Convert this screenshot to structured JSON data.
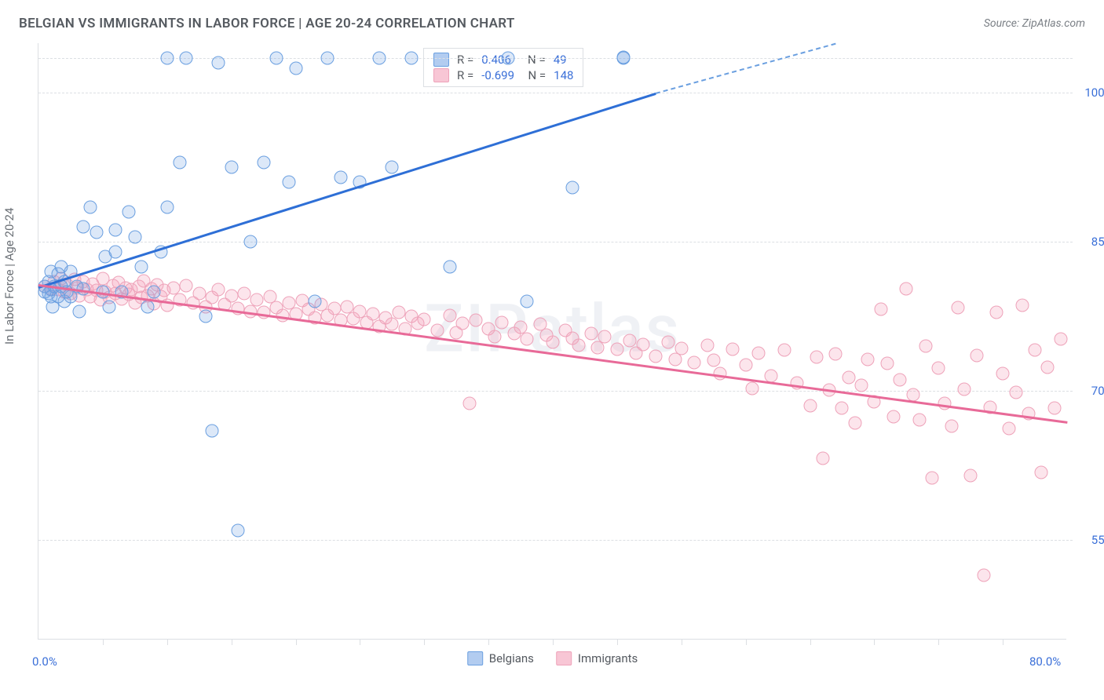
{
  "header": {
    "title": "BELGIAN VS IMMIGRANTS IN LABOR FORCE | AGE 20-24 CORRELATION CHART",
    "source": "Source: ZipAtlas.com"
  },
  "watermark": "ZIPatlas",
  "chart": {
    "type": "scatter",
    "ylabel": "In Labor Force | Age 20-24",
    "x_domain": [
      0,
      80
    ],
    "y_domain": [
      45,
      105
    ],
    "y_ticks": [
      {
        "v": 55.0,
        "label": "55.0%"
      },
      {
        "v": 70.0,
        "label": "70.0%"
      },
      {
        "v": 85.0,
        "label": "85.0%"
      },
      {
        "v": 100.0,
        "label": "100.0%"
      }
    ],
    "x_ticks_minor": [
      5,
      10,
      15,
      20,
      25,
      30,
      35,
      40,
      45,
      50,
      55,
      60,
      65,
      70,
      75
    ],
    "x_axis_labels": [
      {
        "v": 0,
        "label": "0.0%"
      },
      {
        "v": 80,
        "label": "80.0%"
      }
    ],
    "top_gridline": 103.5,
    "colors": {
      "blue_marker_fill": "rgba(115,163,227,0.25)",
      "blue_marker_stroke": "#6a9fe0",
      "pink_marker_fill": "rgba(244,160,185,0.28)",
      "pink_marker_stroke": "#eea2b9",
      "blue_line": "#2e6fd6",
      "pink_line": "#e86a98",
      "grid": "#dcdfe3",
      "text": "#555a60",
      "value_text": "#3a6fd8",
      "background": "#ffffff"
    },
    "series_blue": {
      "name": "Belgians",
      "R": "0.406",
      "N": "49",
      "trend": {
        "x1": 0,
        "y1": 80.5,
        "x2_solid": 48,
        "y2_solid": 100,
        "x2_dash": 62,
        "y2_dash": 105
      },
      "points": [
        [
          0.5,
          80
        ],
        [
          0.5,
          80.5
        ],
        [
          0.8,
          79.8
        ],
        [
          0.8,
          81
        ],
        [
          1.0,
          79.5
        ],
        [
          1.0,
          80.2
        ],
        [
          1.0,
          82
        ],
        [
          1.1,
          78.5
        ],
        [
          1.2,
          80.5
        ],
        [
          1.5,
          79.5
        ],
        [
          1.5,
          81.8
        ],
        [
          1.8,
          80.5
        ],
        [
          1.8,
          82.5
        ],
        [
          2.0,
          79
        ],
        [
          2.0,
          81
        ],
        [
          2.2,
          80
        ],
        [
          2.5,
          79.5
        ],
        [
          2.5,
          82
        ],
        [
          3.0,
          80.5
        ],
        [
          3.2,
          78
        ],
        [
          3.5,
          86.5
        ],
        [
          3.5,
          80.3
        ],
        [
          4.0,
          88.5
        ],
        [
          4.5,
          86
        ],
        [
          5.0,
          80
        ],
        [
          5.2,
          83.5
        ],
        [
          5.5,
          78.5
        ],
        [
          6.0,
          84
        ],
        [
          6.0,
          86.2
        ],
        [
          6.5,
          80
        ],
        [
          7.0,
          88
        ],
        [
          7.5,
          85.5
        ],
        [
          8.0,
          82.5
        ],
        [
          8.5,
          78.5
        ],
        [
          9.0,
          80
        ],
        [
          9.5,
          84
        ],
        [
          10.0,
          88.5
        ],
        [
          10.0,
          103.5
        ],
        [
          11.0,
          93
        ],
        [
          11.5,
          103.5
        ],
        [
          13.0,
          77.5
        ],
        [
          13.5,
          66
        ],
        [
          14.0,
          103
        ],
        [
          15.0,
          92.5
        ],
        [
          16.5,
          85
        ],
        [
          17.5,
          93
        ],
        [
          18.5,
          103.5
        ],
        [
          19.5,
          91
        ],
        [
          20.0,
          102.5
        ],
        [
          21.5,
          79
        ],
        [
          22.5,
          103.5
        ],
        [
          23.5,
          91.5
        ],
        [
          25.0,
          91
        ],
        [
          26.5,
          103.5
        ],
        [
          27.5,
          92.5
        ],
        [
          29.0,
          103.5
        ],
        [
          32.0,
          82.5
        ],
        [
          36.5,
          103.5
        ],
        [
          38.0,
          79
        ],
        [
          41.5,
          90.5
        ],
        [
          45.5,
          103.5
        ],
        [
          45.5,
          103.6
        ],
        [
          15.5,
          56
        ]
      ]
    },
    "series_pink": {
      "name": "Immigrants",
      "R": "-0.699",
      "N": "148",
      "trend": {
        "x1": 0,
        "y1": 80.8,
        "x2": 80,
        "y2": 67
      },
      "points": [
        [
          0.5,
          80.5
        ],
        [
          1.0,
          80.3
        ],
        [
          1.2,
          81
        ],
        [
          1.5,
          80.2
        ],
        [
          1.8,
          81.3
        ],
        [
          2.0,
          80
        ],
        [
          2.2,
          80.8
        ],
        [
          2.5,
          79.8
        ],
        [
          2.8,
          81.2
        ],
        [
          3.0,
          80.4
        ],
        [
          3.2,
          79.6
        ],
        [
          3.5,
          81
        ],
        [
          3.8,
          80.2
        ],
        [
          4.0,
          79.5
        ],
        [
          4.2,
          80.8
        ],
        [
          4.5,
          80.1
        ],
        [
          4.8,
          79.2
        ],
        [
          5.0,
          81.3
        ],
        [
          5.2,
          80
        ],
        [
          5.5,
          79.4
        ],
        [
          5.8,
          80.6
        ],
        [
          6.0,
          79.8
        ],
        [
          6.2,
          80.9
        ],
        [
          6.5,
          79.3
        ],
        [
          6.8,
          80.4
        ],
        [
          7.0,
          79.7
        ],
        [
          7.2,
          80.2
        ],
        [
          7.5,
          78.9
        ],
        [
          7.8,
          80.5
        ],
        [
          8.0,
          79.4
        ],
        [
          8.2,
          81.1
        ],
        [
          8.5,
          79.6
        ],
        [
          8.8,
          80.3
        ],
        [
          9.0,
          78.8
        ],
        [
          9.2,
          80.7
        ],
        [
          9.5,
          79.5
        ],
        [
          9.8,
          80.1
        ],
        [
          10.0,
          78.6
        ],
        [
          10.5,
          80.4
        ],
        [
          11.0,
          79.2
        ],
        [
          11.5,
          80.6
        ],
        [
          12.0,
          78.9
        ],
        [
          12.5,
          79.8
        ],
        [
          13.0,
          78.5
        ],
        [
          13.5,
          79.4
        ],
        [
          14.0,
          80.2
        ],
        [
          14.5,
          78.7
        ],
        [
          15.0,
          79.6
        ],
        [
          15.5,
          78.3
        ],
        [
          16.0,
          79.8
        ],
        [
          16.5,
          78
        ],
        [
          17.0,
          79.2
        ],
        [
          17.5,
          77.9
        ],
        [
          18.0,
          79.5
        ],
        [
          18.5,
          78.4
        ],
        [
          19.0,
          77.6
        ],
        [
          19.5,
          78.9
        ],
        [
          20.0,
          77.8
        ],
        [
          20.5,
          79.1
        ],
        [
          21.0,
          78.2
        ],
        [
          21.5,
          77.4
        ],
        [
          22.0,
          78.7
        ],
        [
          22.5,
          77.6
        ],
        [
          23.0,
          78.3
        ],
        [
          23.5,
          77.1
        ],
        [
          24.0,
          78.5
        ],
        [
          24.5,
          77.3
        ],
        [
          25.0,
          78
        ],
        [
          25.5,
          76.9
        ],
        [
          26.0,
          77.8
        ],
        [
          26.5,
          76.5
        ],
        [
          27.0,
          77.4
        ],
        [
          27.5,
          76.7
        ],
        [
          28.0,
          77.9
        ],
        [
          28.5,
          76.3
        ],
        [
          29.0,
          77.5
        ],
        [
          29.5,
          76.8
        ],
        [
          30.0,
          77.2
        ],
        [
          31.0,
          76.1
        ],
        [
          32.0,
          77.6
        ],
        [
          32.5,
          75.9
        ],
        [
          33.0,
          76.8
        ],
        [
          33.5,
          68.8
        ],
        [
          34.0,
          77.1
        ],
        [
          35.0,
          76.3
        ],
        [
          35.5,
          75.5
        ],
        [
          36.0,
          76.9
        ],
        [
          37.0,
          75.8
        ],
        [
          37.5,
          76.4
        ],
        [
          38.0,
          75.2
        ],
        [
          39.0,
          76.7
        ],
        [
          39.5,
          75.6
        ],
        [
          40.0,
          74.9
        ],
        [
          41.0,
          76.1
        ],
        [
          41.5,
          75.3
        ],
        [
          42.0,
          74.6
        ],
        [
          43.0,
          75.8
        ],
        [
          43.5,
          74.4
        ],
        [
          44.0,
          75.5
        ],
        [
          45.0,
          74.2
        ],
        [
          46.0,
          75.1
        ],
        [
          46.5,
          73.8
        ],
        [
          47.0,
          74.7
        ],
        [
          48.0,
          73.5
        ],
        [
          49.0,
          74.9
        ],
        [
          49.5,
          73.2
        ],
        [
          50.0,
          74.3
        ],
        [
          51.0,
          72.9
        ],
        [
          52.0,
          74.6
        ],
        [
          52.5,
          73.1
        ],
        [
          53.0,
          71.8
        ],
        [
          54.0,
          74.2
        ],
        [
          55.0,
          72.6
        ],
        [
          55.5,
          70.3
        ],
        [
          56.0,
          73.8
        ],
        [
          57.0,
          71.5
        ],
        [
          58.0,
          74.1
        ],
        [
          59.0,
          70.8
        ],
        [
          60.0,
          68.5
        ],
        [
          60.5,
          73.4
        ],
        [
          61.0,
          63.2
        ],
        [
          61.5,
          70.1
        ],
        [
          62.0,
          73.7
        ],
        [
          62.5,
          68.3
        ],
        [
          63.0,
          71.4
        ],
        [
          63.5,
          66.8
        ],
        [
          64.0,
          70.6
        ],
        [
          64.5,
          73.2
        ],
        [
          65.0,
          68.9
        ],
        [
          65.5,
          78.2
        ],
        [
          66.0,
          72.8
        ],
        [
          66.5,
          67.4
        ],
        [
          67.0,
          71.1
        ],
        [
          67.5,
          80.3
        ],
        [
          68.0,
          69.6
        ],
        [
          68.5,
          67.1
        ],
        [
          69.0,
          74.5
        ],
        [
          69.5,
          61.3
        ],
        [
          70.0,
          72.3
        ],
        [
          70.5,
          68.8
        ],
        [
          71.0,
          66.5
        ],
        [
          71.5,
          78.4
        ],
        [
          72.0,
          70.2
        ],
        [
          72.5,
          61.5
        ],
        [
          73.0,
          73.6
        ],
        [
          73.5,
          51.5
        ],
        [
          74.0,
          68.4
        ],
        [
          74.5,
          77.9
        ],
        [
          75.0,
          71.8
        ],
        [
          75.5,
          66.2
        ],
        [
          76.0,
          69.9
        ],
        [
          76.5,
          78.6
        ],
        [
          77.0,
          67.7
        ],
        [
          77.5,
          74.1
        ],
        [
          78.0,
          61.8
        ],
        [
          78.5,
          72.4
        ],
        [
          79.0,
          68.3
        ],
        [
          79.5,
          75.2
        ]
      ]
    },
    "legend_bottom": [
      {
        "label": "Belgians",
        "swatch": "blue"
      },
      {
        "label": "Immigrants",
        "swatch": "pink"
      }
    ]
  }
}
